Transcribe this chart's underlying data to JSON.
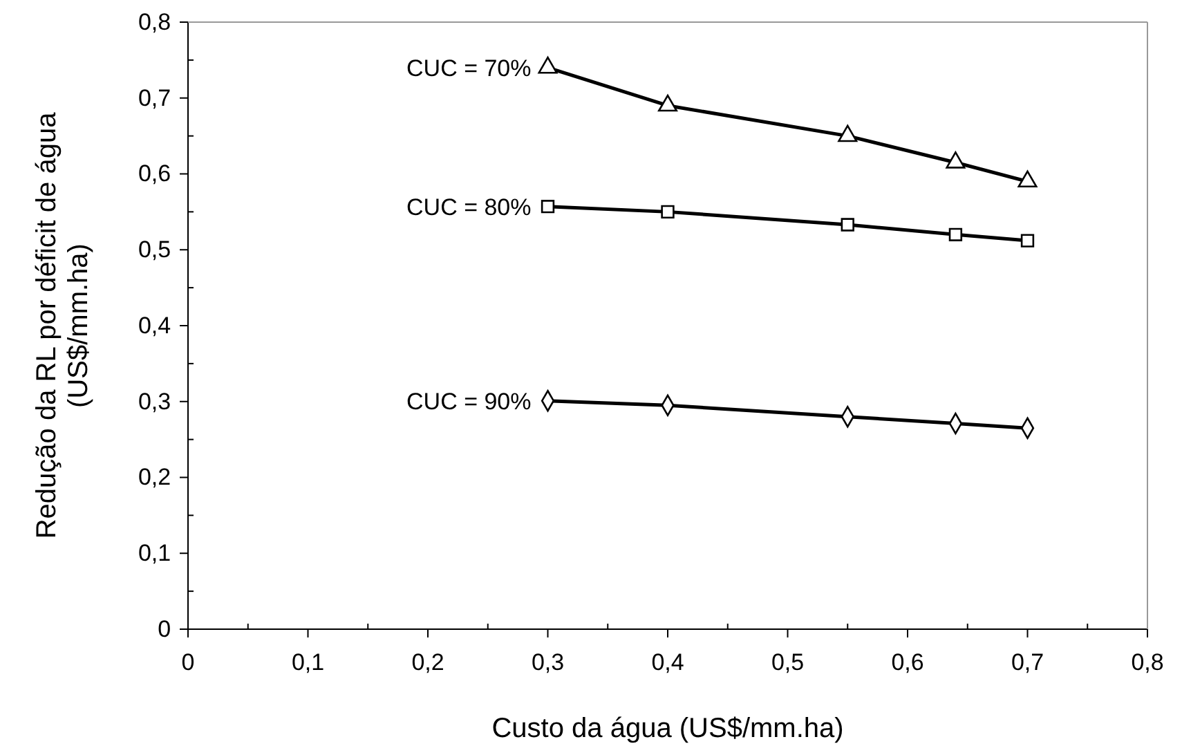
{
  "chart_data": {
    "type": "line",
    "xlabel": "Custo da água (US$/mm.ha)",
    "ylabel": "Redução da RL por déficit de água\n(US$/mm.ha)",
    "x": [
      0.3,
      0.4,
      0.55,
      0.64,
      0.7
    ],
    "series": [
      {
        "name": "CUC = 70%",
        "color": "#000000",
        "marker": "triangle",
        "values": [
          0.74,
          0.69,
          0.65,
          0.615,
          0.59
        ]
      },
      {
        "name": "CUC = 80%",
        "color": "#000000",
        "marker": "square",
        "values": [
          0.557,
          0.55,
          0.533,
          0.52,
          0.512
        ]
      },
      {
        "name": "CUC = 90%",
        "color": "#000000",
        "marker": "diamond",
        "values": [
          0.301,
          0.295,
          0.28,
          0.271,
          0.265
        ]
      }
    ],
    "xlim": [
      0,
      0.8
    ],
    "ylim": [
      0,
      0.8
    ],
    "xticks": [
      0,
      {
        "value": 0.1,
        "label": "0,1"
      },
      {
        "value": 0.2,
        "label": "0,2"
      },
      {
        "value": 0.3,
        "label": "0,3"
      },
      {
        "value": 0.4,
        "label": "0,4"
      },
      {
        "value": 0.5,
        "label": "0,5"
      },
      {
        "value": 0.6,
        "label": "0,6"
      },
      {
        "value": 0.7,
        "label": "0,7"
      },
      {
        "value": 0.8,
        "label": "0,8"
      }
    ],
    "yticks": [
      0,
      {
        "value": 0.1,
        "label": "0,1"
      },
      {
        "value": 0.2,
        "label": "0,2"
      },
      {
        "value": 0.3,
        "label": "0,3"
      },
      {
        "value": 0.4,
        "label": "0,4"
      },
      {
        "value": 0.5,
        "label": "0,5"
      },
      {
        "value": 0.6,
        "label": "0,6"
      },
      {
        "value": 0.7,
        "label": "0,7"
      },
      {
        "value": 0.8,
        "label": "0,8"
      }
    ],
    "line_style": "solid"
  }
}
